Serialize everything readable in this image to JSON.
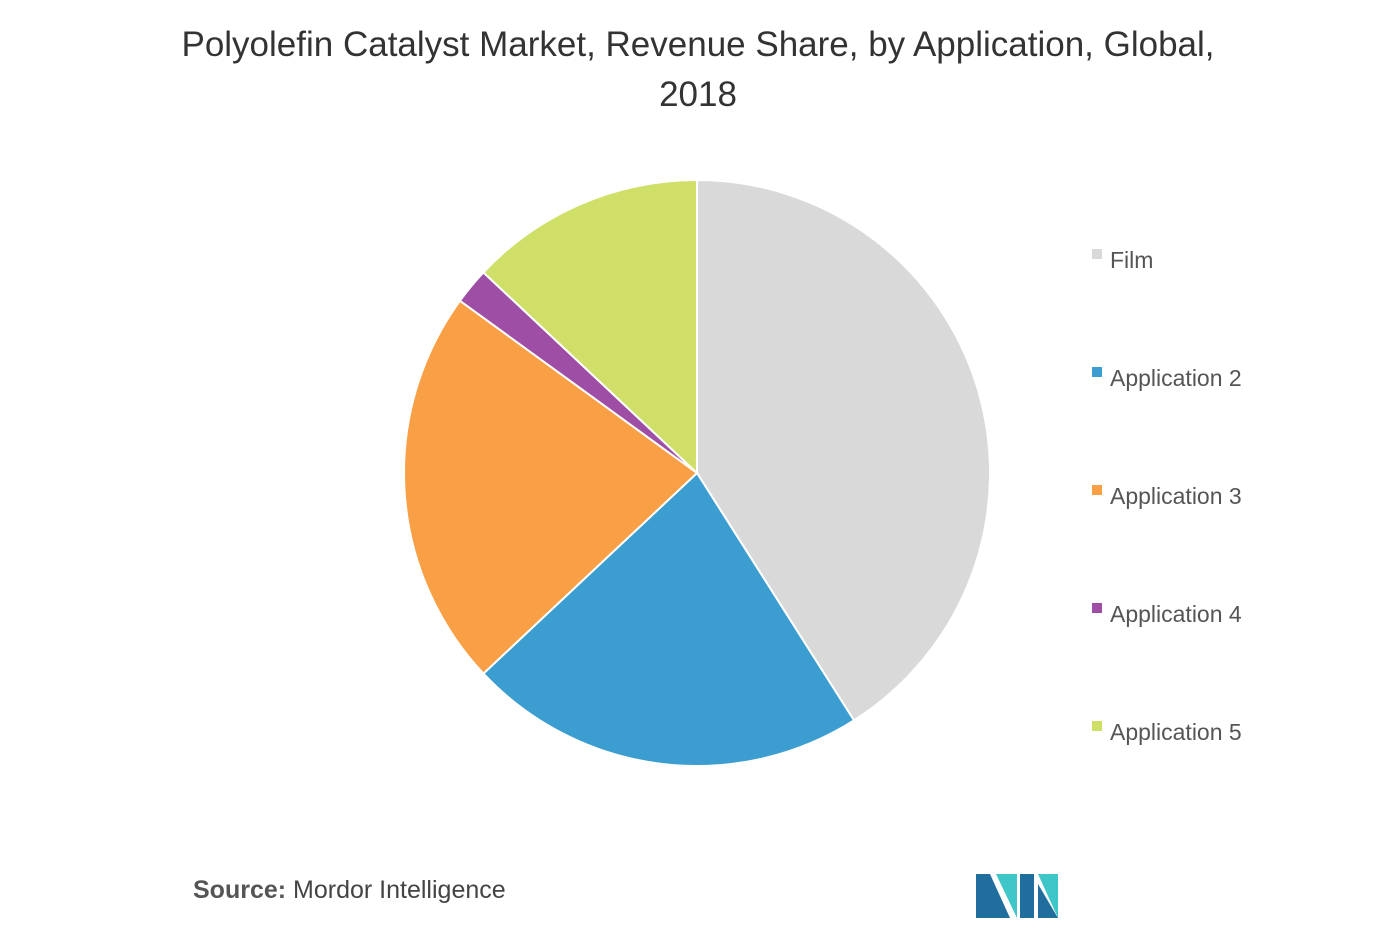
{
  "chart_data": {
    "type": "pie",
    "title": "Polyolefin Catalyst Market, Revenue Share, by Application, Global, 2018",
    "categories": [
      "Film",
      "Application 2",
      "Application 3",
      "Application 4",
      "Application 5"
    ],
    "values": [
      41,
      22,
      22,
      2,
      13
    ],
    "colors": [
      "#d9d9d9",
      "#3c9dd0",
      "#f99f45",
      "#9e4fa5",
      "#cfdf68"
    ],
    "legend": "right"
  },
  "source": {
    "label": "Source:",
    "text": "Mordor Intelligence"
  }
}
